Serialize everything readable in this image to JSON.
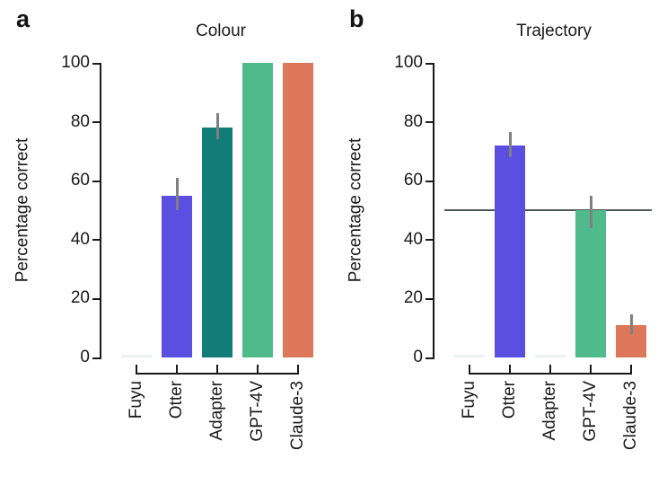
{
  "figure": {
    "background": "#ffffff",
    "text_color": "#1a1a1a",
    "axis_color": "#1a1a1a",
    "error_bar_color": "#808080",
    "zero_bar_color": "#edf1f1"
  },
  "chart_data": [
    {
      "type": "bar",
      "panel_label": "a",
      "title": "Colour",
      "ylabel": "Percentage correct",
      "xlabel": "",
      "ylim": [
        0,
        100
      ],
      "yticks": [
        0,
        20,
        40,
        60,
        80,
        100
      ],
      "grid": false,
      "legend": false,
      "categories": [
        "Fuyu",
        "Otter",
        "Adapter",
        "GPT-4V",
        "Claude-3"
      ],
      "values": [
        0,
        55,
        78,
        100,
        100
      ],
      "bar_colors": [
        "#edf1f1",
        "#5a4fe0",
        "#117c78",
        "#4fba8c",
        "#dc7859"
      ],
      "error_low": [
        null,
        50,
        74,
        null,
        null
      ],
      "error_high": [
        null,
        61,
        83,
        null,
        null
      ],
      "chance_line": null
    },
    {
      "type": "bar",
      "panel_label": "b",
      "title": "Trajectory",
      "ylabel": "Percentage correct",
      "xlabel": "",
      "ylim": [
        0,
        100
      ],
      "yticks": [
        0,
        20,
        40,
        60,
        80,
        100
      ],
      "grid": false,
      "legend": false,
      "categories": [
        "Fuyu",
        "Otter",
        "Adapter",
        "GPT-4V",
        "Claude-3"
      ],
      "values": [
        0,
        72,
        0,
        50,
        11
      ],
      "bar_colors": [
        "#edf1f1",
        "#5a4fe0",
        "#edf1f1",
        "#4fba8c",
        "#dc7859"
      ],
      "error_low": [
        null,
        68,
        null,
        44,
        8
      ],
      "error_high": [
        null,
        76.5,
        null,
        55,
        14.5
      ],
      "chance_line": {
        "value": 50,
        "color": "#4f5a5e"
      }
    }
  ]
}
